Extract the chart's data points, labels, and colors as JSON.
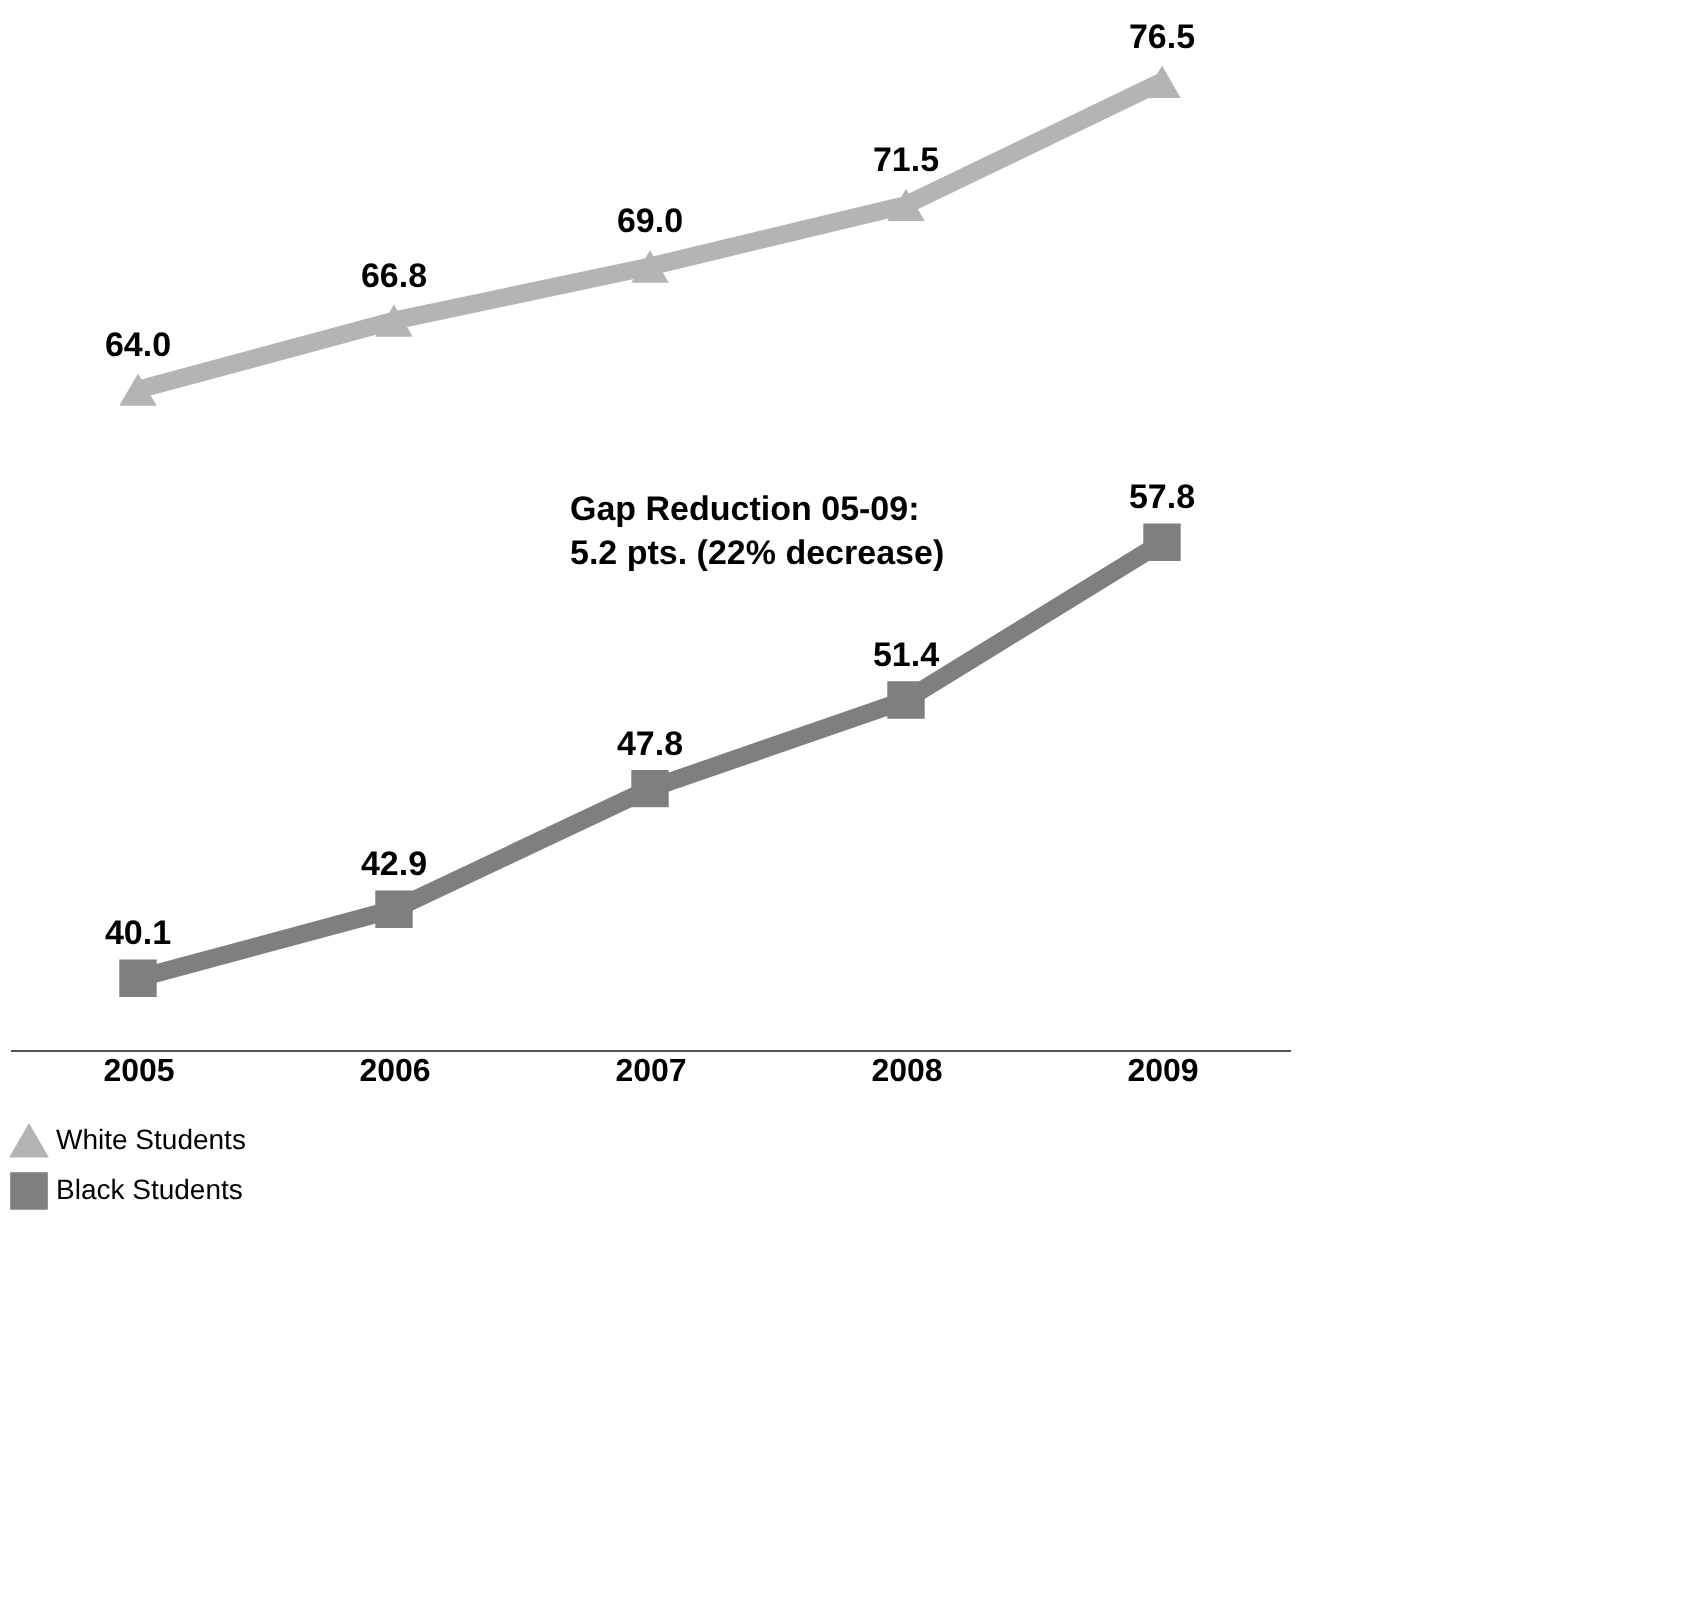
{
  "chart_data": {
    "type": "line",
    "categories": [
      "2005",
      "2006",
      "2007",
      "2008",
      "2009"
    ],
    "series": [
      {
        "name": "White Students",
        "color": "#b4b4b4",
        "marker": "triangle",
        "values": [
          64.0,
          66.8,
          69.0,
          71.5,
          76.5
        ],
        "value_labels": [
          "64.0",
          "66.8",
          "69.0",
          "71.5",
          "76.5"
        ]
      },
      {
        "name": "Black Students",
        "color": "#7f7f7f",
        "marker": "square",
        "values": [
          40.1,
          42.9,
          47.8,
          51.4,
          57.8
        ],
        "value_labels": [
          "40.1",
          "42.9",
          "47.8",
          "51.4",
          "57.8"
        ]
      }
    ],
    "annotations": [
      "Gap Reduction 05-09:\n5.2 pts. (22% decrease)"
    ],
    "legend": "bottom",
    "grid": false,
    "tick_labels": "x",
    "line_style": "solid"
  }
}
